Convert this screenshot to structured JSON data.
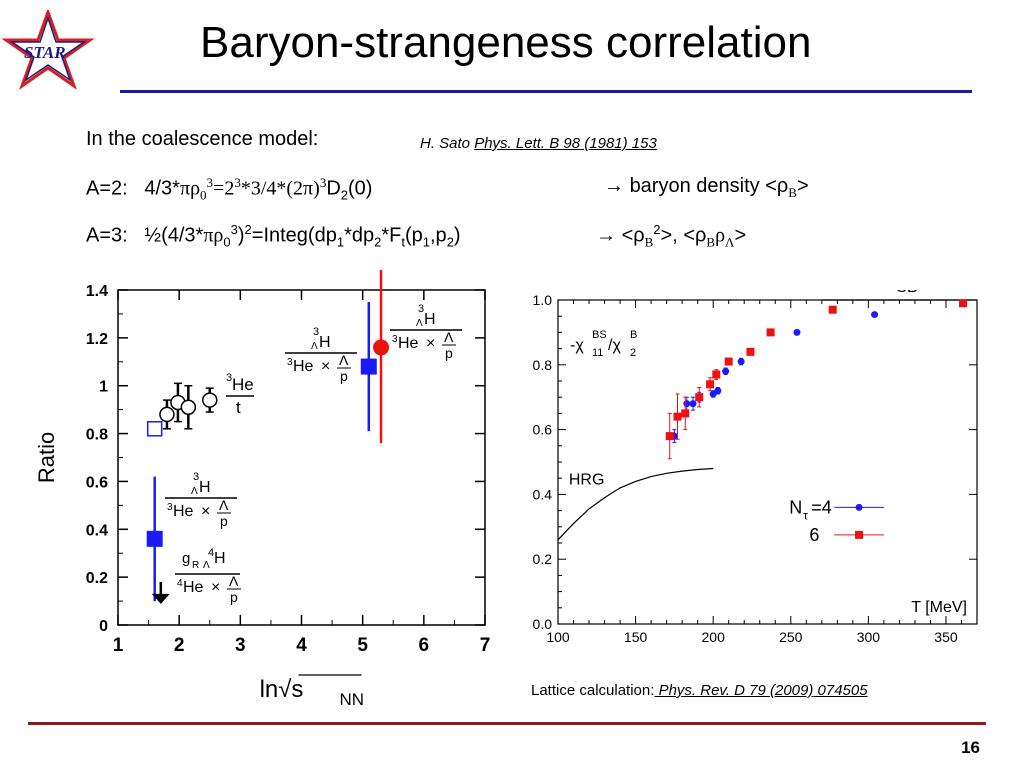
{
  "title": "Baryon-strangeness correlation",
  "logo_text": "STAR",
  "colors": {
    "title_rule": "#1a1aa6",
    "footer_rule": "#8b1a1a",
    "blue": "#1a1aff",
    "red": "#ee1111",
    "star_red": "#d42020",
    "star_blue": "#1a1a80"
  },
  "text": {
    "model_label": "In the coalescence model:",
    "ref1": {
      "author": "H. Sato ",
      "journal": "Phys. Lett. B 98 (1981) 153"
    },
    "a2": {
      "label": "A=2:",
      "prefix": "4/3*",
      "pi_rho": "πρ",
      "sub0": "0",
      "sup3a": "3",
      "mid": "=2",
      "sup3b": "3",
      "mid2": "*3/4*(2π)",
      "sup3c": "3",
      "D": "D",
      "sub2": "2",
      "arg": "(0)"
    },
    "a2_arrow": "baryon density <ρ",
    "a2_arrow_sub": "B",
    "a2_arrow_end": ">",
    "a3": {
      "label": "A=3:",
      "half": "½",
      "open": "(4/3*",
      "pi_rho": "πρ",
      "sub0": "0",
      "sup3": "3",
      "close": ")",
      "sup2": "2",
      "eq": "=Integ(dp",
      "s1": "1",
      "dp2": "*dp",
      "s2": "2",
      "F": "*F",
      "st": "t",
      "p1": "(p",
      "sp1": "1",
      "p2": ",p",
      "sp2": "2",
      "end": ")"
    },
    "a3_arrow_a": "<ρ",
    "a3_arrow_sub_b": "B",
    "a3_arrow_sup2": "2",
    "a3_arrow_b": ">, <ρ",
    "a3_arrow_sub_b2": "B",
    "a3_arrow_rho": "ρ",
    "a3_arrow_sub_l": "Λ",
    "a3_arrow_end": ">",
    "ref2": {
      "label": "Lattice calculation:",
      "journal": " Phys. Rev. D 79 (2009) 074505"
    },
    "page_number": "16"
  },
  "chart_data": [
    {
      "type": "scatter",
      "title": "",
      "xlabel": "ln√s",
      "xlabel_sub": "NN",
      "ylabel": "Ratio",
      "xlim": [
        1,
        7
      ],
      "ylim": [
        0,
        1.4
      ],
      "xticks": [
        "1",
        "2",
        "3",
        "4",
        "5",
        "6",
        "7"
      ],
      "yticks": [
        "0",
        "0.2",
        "0.4",
        "0.6",
        "0.8",
        "1",
        "1.2",
        "1.4"
      ],
      "series": [
        {
          "marker": "open-circle",
          "color": "#000000",
          "points": [
            {
              "x": 1.8,
              "y": 0.88,
              "err": 0.06
            },
            {
              "x": 1.98,
              "y": 0.93,
              "err": 0.08
            },
            {
              "x": 2.15,
              "y": 0.91,
              "err": 0.09
            },
            {
              "x": 2.5,
              "y": 0.94,
              "err": 0.05
            }
          ]
        },
        {
          "marker": "open-square",
          "color": "#1a1aff",
          "points": [
            {
              "x": 1.6,
              "y": 0.82,
              "err": 0
            }
          ]
        },
        {
          "marker": "filled-square",
          "color": "#1a1aff",
          "points": [
            {
              "x": 1.6,
              "y": 0.36,
              "err": 0.26
            },
            {
              "x": 5.1,
              "y": 1.08,
              "err": 0.27
            }
          ]
        },
        {
          "marker": "filled-circle",
          "color": "#ee1111",
          "points": [
            {
              "x": 5.3,
              "y": 1.16,
              "err": 0.4
            }
          ]
        },
        {
          "marker": "upper-limit",
          "color": "#000000",
          "points": [
            {
              "x": 1.7,
              "y": 0.18
            }
          ]
        }
      ],
      "labels": {
        "he_t_top": "He",
        "he_t_sup": "3",
        "he_t_bottom": "t",
        "h_sup": "3",
        "lambda_sub": "Λ",
        "h": "H",
        "he3": "He",
        "he3_sup": "3",
        "times": "×",
        "lam": "Λ",
        "p": "p",
        "g_r": "g",
        "g_r_sub": "R",
        "h4_sup": "4",
        "he4_sup": "4",
        "he4": "He"
      }
    },
    {
      "type": "scatter",
      "title": "",
      "xlabel": "T [MeV]",
      "ylabel": "",
      "xlim": [
        100,
        370
      ],
      "ylim": [
        0,
        1.0
      ],
      "xticks": [
        "100",
        "150",
        "200",
        "250",
        "300",
        "350"
      ],
      "yticks": [
        "0.0",
        "0.2",
        "0.4",
        "0.6",
        "0.8",
        "1.0"
      ],
      "annotation": {
        "chi": "-χ",
        "chi_sup": "BS",
        "chi_sub": "11",
        "slash": "/χ",
        "chi2_sup": "B",
        "chi2_sub": "2"
      },
      "sb_label": "SB",
      "sb_level": 1.0,
      "sb_range": [
        270,
        370
      ],
      "hrg_label": "HRG",
      "hrg_curve": [
        [
          100,
          0.26
        ],
        [
          110,
          0.31
        ],
        [
          120,
          0.355
        ],
        [
          130,
          0.39
        ],
        [
          140,
          0.42
        ],
        [
          150,
          0.44
        ],
        [
          160,
          0.455
        ],
        [
          170,
          0.465
        ],
        [
          180,
          0.472
        ],
        [
          190,
          0.477
        ],
        [
          200,
          0.48
        ]
      ],
      "legend": [
        {
          "name": "N",
          "name_sub": "τ",
          "name_end": "=4",
          "marker": "circle",
          "color": "#1a1aff"
        },
        {
          "name": "6",
          "marker": "square",
          "color": "#ee1111"
        }
      ],
      "series": [
        {
          "name": "Nτ=4",
          "marker": "circle",
          "color": "#1a1aff",
          "points": [
            [
              175,
              0.58,
              0.02
            ],
            [
              183,
              0.68,
              0.02
            ],
            [
              187,
              0.68,
              0.02
            ],
            [
              191,
              0.7,
              0.015
            ],
            [
              200,
              0.71,
              0.01
            ],
            [
              203,
              0.72,
              0.01
            ],
            [
              208,
              0.78,
              0.01
            ],
            [
              218,
              0.81,
              0.01
            ],
            [
              254,
              0.9,
              0.0
            ],
            [
              304,
              0.955,
              0.0
            ]
          ]
        },
        {
          "name": "6",
          "marker": "square",
          "color": "#ee1111",
          "points": [
            [
              172,
              0.58,
              0.07
            ],
            [
              177,
              0.64,
              0.07
            ],
            [
              182,
              0.65,
              0.05
            ],
            [
              191,
              0.7,
              0.03
            ],
            [
              198,
              0.74,
              0.02
            ],
            [
              202,
              0.77,
              0.015
            ],
            [
              210,
              0.81,
              0.01
            ],
            [
              224,
              0.84,
              0.01
            ],
            [
              237,
              0.9,
              0.0
            ],
            [
              277,
              0.97,
              0.0
            ],
            [
              361,
              0.99,
              0.0
            ]
          ]
        }
      ]
    }
  ]
}
